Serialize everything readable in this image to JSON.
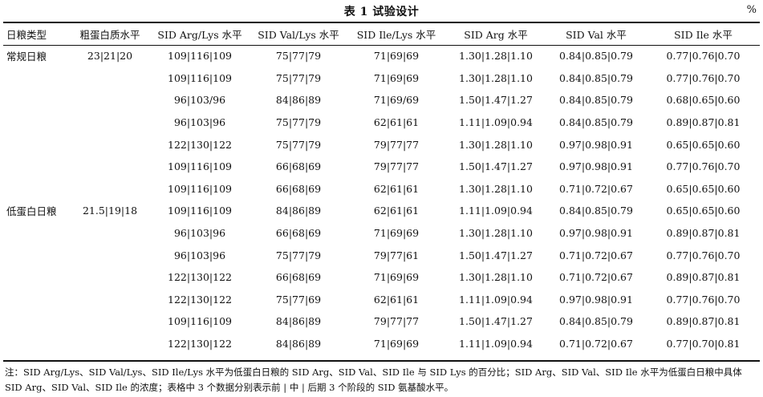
{
  "title": "表 1  试验设计",
  "unit": "%",
  "headers": [
    "日粮类型",
    "粗蛋白质水平",
    "SID Arg/Lys 水平",
    "SID Val/Lys 水平",
    "SID Ile/Lys 水平",
    "SID Arg 水平",
    "SID Val 水平",
    "SID Ile 水平"
  ],
  "groups": [
    {
      "label": "常规日粮",
      "protein": "23|21|20"
    },
    {
      "label": "低蛋白日粮",
      "protein": "21.5|19|18"
    }
  ],
  "rows": [
    [
      "109|116|109",
      "75|77|79",
      "71|69|69",
      "1.30|1.28|1.10",
      "0.84|0.85|0.79",
      "0.77|0.76|0.70"
    ],
    [
      "109|116|109",
      "75|77|79",
      "71|69|69",
      "1.30|1.28|1.10",
      "0.84|0.85|0.79",
      "0.77|0.76|0.70"
    ],
    [
      "96|103/96",
      "84|86|89",
      "71|69/69",
      "1.50|1.47|1.27",
      "0.84|0.85|0.79",
      "0.68|0.65|0.60"
    ],
    [
      "96|103|96",
      "75|77|79",
      "62|61|61",
      "1.11|1.09|0.94",
      "0.84|0.85|0.79",
      "0.89|0.87|0.81"
    ],
    [
      "122|130|122",
      "75|77|79",
      "79|77|77",
      "1.30|1.28|1.10",
      "0.97|0.98|0.91",
      "0.65|0.65|0.60"
    ],
    [
      "109|116|109",
      "66|68|69",
      "79|77|77",
      "1.50|1.47|1.27",
      "0.97|0.98|0.91",
      "0.77|0.76|0.70"
    ],
    [
      "109|116|109",
      "66|68|69",
      "62|61|61",
      "1.30|1.28|1.10",
      "0.71|0.72|0.67",
      "0.65|0.65|0.60"
    ],
    [
      "109|116|109",
      "84|86|89",
      "62|61|61",
      "1.11|1.09|0.94",
      "0.84|0.85|0.79",
      "0.65|0.65|0.60"
    ],
    [
      "96|103|96",
      "66|68|69",
      "71|69|69",
      "1.30|1.28|1.10",
      "0.97|0.98|0.91",
      "0.89|0.87|0.81"
    ],
    [
      "96|103|96",
      "75|77|79",
      "79|77|61",
      "1.50|1.47|1.27",
      "0.71|0.72|0.67",
      "0.77|0.76|0.70"
    ],
    [
      "122|130|122",
      "66|68|69",
      "71|69|69",
      "1.30|1.28|1.10",
      "0.71|0.72|0.67",
      "0.89|0.87|0.81"
    ],
    [
      "122|130|122",
      "75|77|69",
      "62|61|61",
      "1.11|1.09|0.94",
      "0.97|0.98|0.91",
      "0.77|0.76|0.70"
    ],
    [
      "109|116|109",
      "84|86|89",
      "79|77|77",
      "1.50|1.47|1.27",
      "0.84|0.85|0.79",
      "0.89|0.87|0.81"
    ],
    [
      "122|130|122",
      "84|86|89",
      "71|69|69",
      "1.11|1.09|0.94",
      "0.71|0.72|0.67",
      "0.77|0.70|0.81"
    ]
  ],
  "note": "注：SID Arg/Lys、SID Val/Lys、SID Ile/Lys 水平为低蛋白日粮的 SID Arg、SID Val、SID Ile 与 SID Lys 的百分比；SID Arg、SID Val、SID Ile 水平为低蛋白日粮中具体 SID Arg、SID Val、SID Ile 的浓度；表格中 3 个数据分别表示前 | 中 | 后期 3 个阶段的 SID 氨基酸水平。"
}
